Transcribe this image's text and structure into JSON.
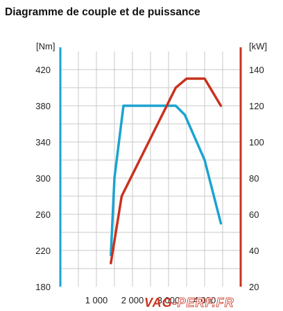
{
  "title": "Diagramme de couple et de puissance",
  "watermark": {
    "part1": "VAG",
    "part2": "-PERF.FR"
  },
  "colors": {
    "torque": "#1aa3d1",
    "power": "#c8321e",
    "grid": "#c9c9c9",
    "left_axis": "#1aa3d1",
    "right_axis": "#c8321e"
  },
  "chart_data": {
    "type": "line",
    "title": "Diagramme de couple et de puissance",
    "ylabel": "[Nm]",
    "y2label": "[kW]",
    "xlabel": "",
    "xlim": [
      0,
      5000
    ],
    "ylim": [
      180,
      440
    ],
    "y2lim": [
      20,
      150
    ],
    "x_ticks": [
      1000,
      2000,
      3000,
      4000
    ],
    "x_tick_labels": [
      "1 000",
      "2 000",
      "3 000",
      "4 000"
    ],
    "y_ticks": [
      180,
      220,
      260,
      300,
      340,
      380,
      420
    ],
    "y2_ticks": [
      20,
      40,
      60,
      80,
      100,
      120,
      140
    ],
    "grid": true,
    "series": [
      {
        "name": "",
        "axis": "left",
        "color": "#1aa3d1",
        "x": [
          1400,
          1500,
          1750,
          3200,
          3450,
          4000,
          4450
        ],
        "y": [
          215,
          300,
          380,
          380,
          370,
          320,
          250
        ]
      },
      {
        "name": "",
        "axis": "right",
        "color": "#c8321e",
        "x": [
          1400,
          1700,
          3200,
          3500,
          4000,
          4450
        ],
        "y": [
          33,
          70,
          130,
          135,
          135,
          120
        ]
      }
    ]
  }
}
